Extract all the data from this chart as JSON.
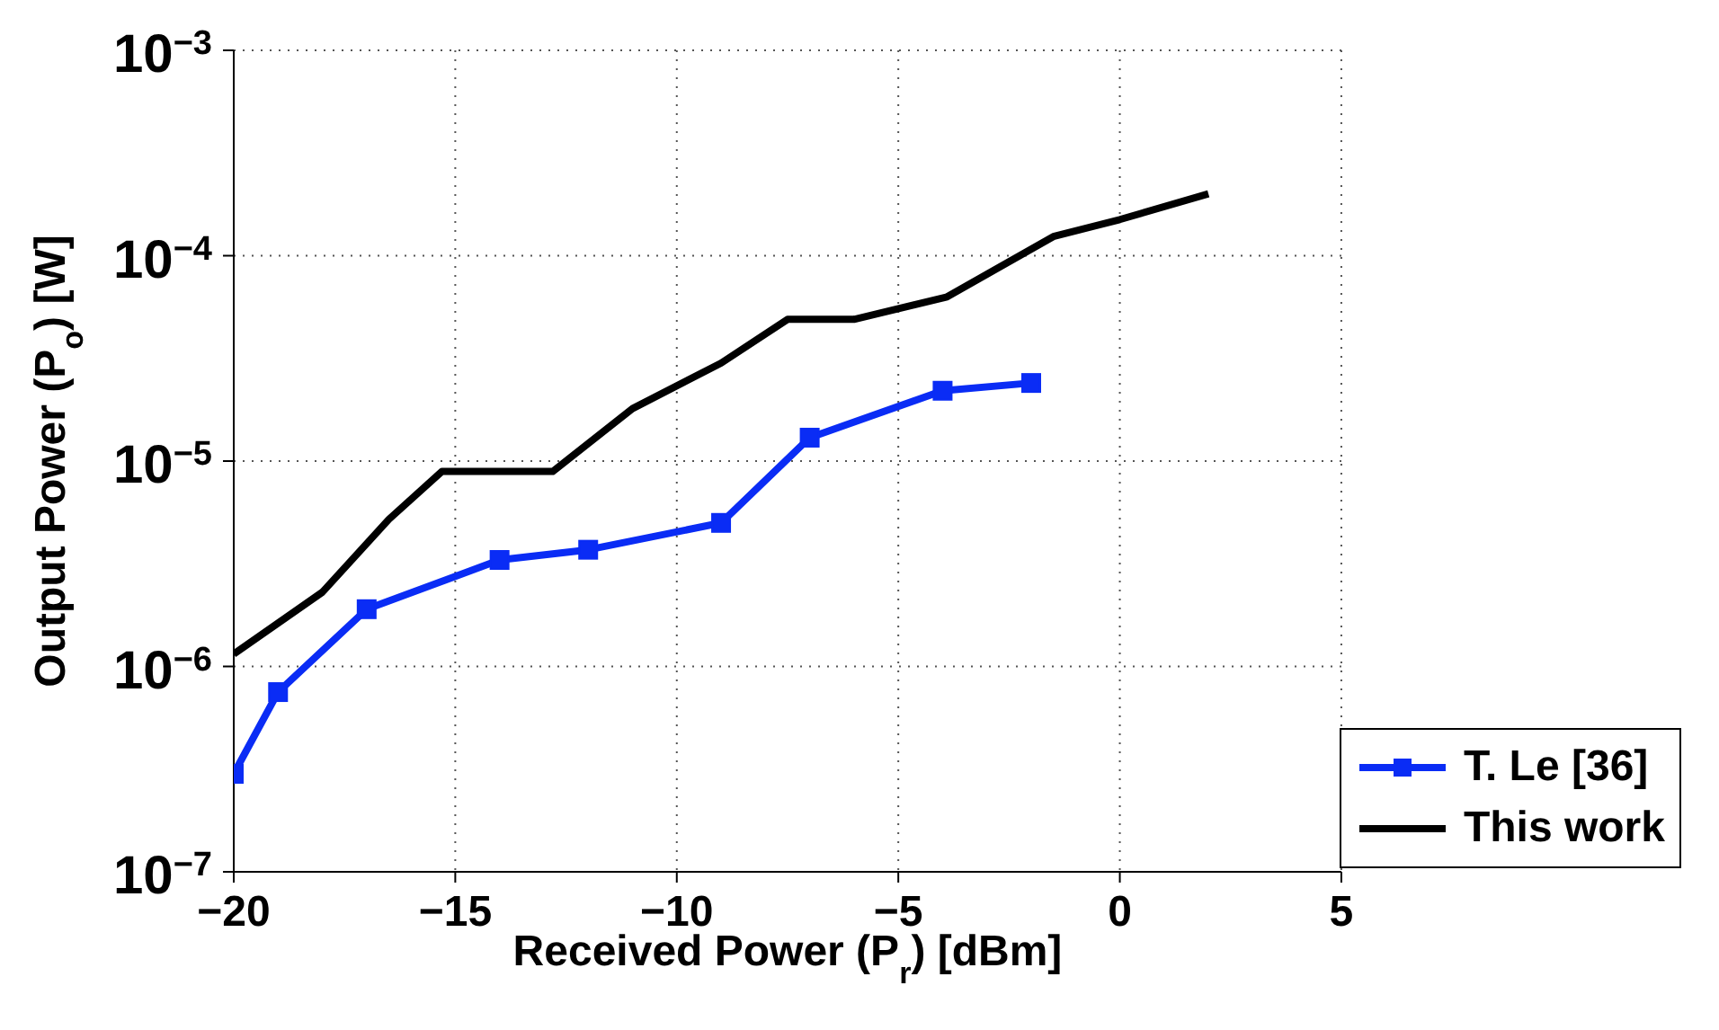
{
  "chart_data": {
    "type": "line",
    "xlabel": "Received Power (P$_{r}$) [dBm]",
    "ylabel": "Output Power (P$_{o}$) [W]",
    "log": "y",
    "grid": true,
    "legend": "bottom right",
    "line_style": "solid",
    "xlim": [
      -20,
      5
    ],
    "xticks": [
      {
        "value": -20,
        "label": "−20"
      },
      {
        "value": -15,
        "label": "−15"
      },
      {
        "value": -10,
        "label": "−10"
      },
      {
        "value": -5,
        "label": "−5"
      },
      0,
      5
    ],
    "ylim": [
      1e-07,
      0.001
    ],
    "yticks": [
      {
        "value": 1e-07,
        "label": "10$^{−7}$"
      },
      {
        "value": 1e-06,
        "label": "10$^{−6}$"
      },
      {
        "value": 1e-05,
        "label": "10$^{−5}$"
      },
      {
        "value": 0.0001,
        "label": "10$^{−4}$"
      },
      {
        "value": 0.001,
        "label": "10$^{−3}$"
      }
    ],
    "series": [
      {
        "name": "T. Le [36]",
        "color": "#0a2cf5",
        "marker": "square",
        "x": [
          -20,
          -19,
          -17,
          -14,
          -12,
          -9,
          -7,
          -4,
          -2
        ],
        "values": [
          3e-07,
          7.5e-07,
          1.9e-06,
          3.3e-06,
          3.7e-06,
          5e-06,
          1.3e-05,
          2.2e-05,
          2.4e-05
        ]
      },
      {
        "name": "This work",
        "color": "#000000",
        "marker": "none",
        "x": [
          -20,
          -18,
          -16.5,
          -15.3,
          -12.8,
          -11,
          -9,
          -7.5,
          -6,
          -3.9,
          -1.5,
          0,
          2
        ],
        "values": [
          1.15e-06,
          2.3e-06,
          5.2e-06,
          8.9e-06,
          8.9e-06,
          1.8e-05,
          3e-05,
          4.9e-05,
          4.9e-05,
          6.3e-05,
          0.000124,
          0.00015,
          0.0002
        ]
      }
    ]
  }
}
